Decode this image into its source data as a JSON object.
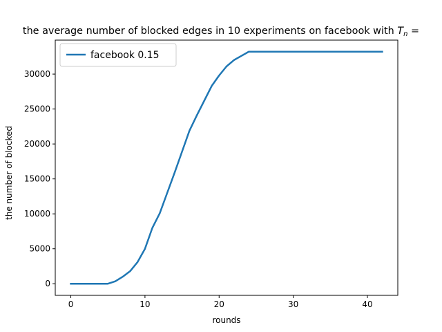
{
  "chart_data": {
    "type": "line",
    "title": "the average number of blocked edges in 10 experiments on facebook with ",
    "title_math": "T",
    "title_math_sub": "n",
    "title_tail": " =",
    "xlabel": "rounds",
    "ylabel": "the number of blocked",
    "xlim": [
      -2.1,
      44.1
    ],
    "ylim": [
      -1660,
      34860
    ],
    "xticks": [
      0,
      10,
      20,
      30,
      40
    ],
    "yticks": [
      0,
      5000,
      10000,
      15000,
      20000,
      25000,
      30000
    ],
    "grid": false,
    "legend_position": "top-left",
    "series": [
      {
        "name": "facebook 0.15",
        "color": "#1f77b4",
        "x": [
          0,
          1,
          2,
          3,
          4,
          5,
          6,
          7,
          8,
          9,
          10,
          11,
          12,
          13,
          14,
          15,
          16,
          17,
          18,
          19,
          20,
          21,
          22,
          23,
          24,
          25,
          26,
          27,
          28,
          29,
          30,
          31,
          32,
          33,
          34,
          35,
          36,
          37,
          38,
          39,
          40,
          41,
          42
        ],
        "y": [
          0,
          0,
          0,
          0,
          0,
          0,
          350,
          1000,
          1800,
          3100,
          5000,
          8000,
          10100,
          13000,
          15900,
          18900,
          21900,
          24100,
          26200,
          28300,
          29800,
          31100,
          32000,
          32600,
          33200,
          33200,
          33200,
          33200,
          33200,
          33200,
          33200,
          33200,
          33200,
          33200,
          33200,
          33200,
          33200,
          33200,
          33200,
          33200,
          33200,
          33200,
          33200
        ]
      }
    ]
  }
}
